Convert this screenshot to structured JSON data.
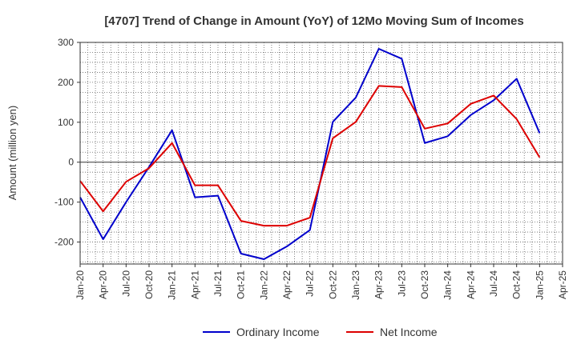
{
  "chart_data": {
    "type": "line",
    "title": "[4707]  Trend of Change in Amount (YoY) of 12Mo Moving Sum of Incomes",
    "ylabel": "Amount (million yen)",
    "xlabel": "",
    "ylim": [
      -255,
      300
    ],
    "yticks": [
      -200,
      -100,
      0,
      100,
      200,
      300
    ],
    "x": [
      "Jan-20",
      "Apr-20",
      "Jul-20",
      "Oct-20",
      "Jan-21",
      "Apr-21",
      "Jul-21",
      "Oct-21",
      "Jan-22",
      "Apr-22",
      "Jul-22",
      "Oct-22",
      "Jan-23",
      "Apr-23",
      "Jul-23",
      "Oct-23",
      "Jan-24",
      "Apr-24",
      "Jul-24",
      "Oct-24",
      "Jan-25",
      "Apr-25"
    ],
    "series": [
      {
        "name": "Ordinary Income",
        "color": "#0000cc",
        "values": [
          -88,
          -193,
          -100,
          -12,
          80,
          -88,
          -84,
          -229,
          -243,
          -211,
          -170,
          101,
          162,
          284,
          259,
          48,
          65,
          118,
          155,
          209,
          73,
          null
        ]
      },
      {
        "name": "Net Income",
        "color": "#dd0000",
        "values": [
          -47,
          -123,
          -49,
          -15,
          48,
          -58,
          -58,
          -147,
          -159,
          -159,
          -139,
          60,
          101,
          191,
          188,
          84,
          97,
          146,
          167,
          108,
          12,
          null
        ]
      }
    ],
    "grid": true,
    "legend": "bottom-center"
  }
}
